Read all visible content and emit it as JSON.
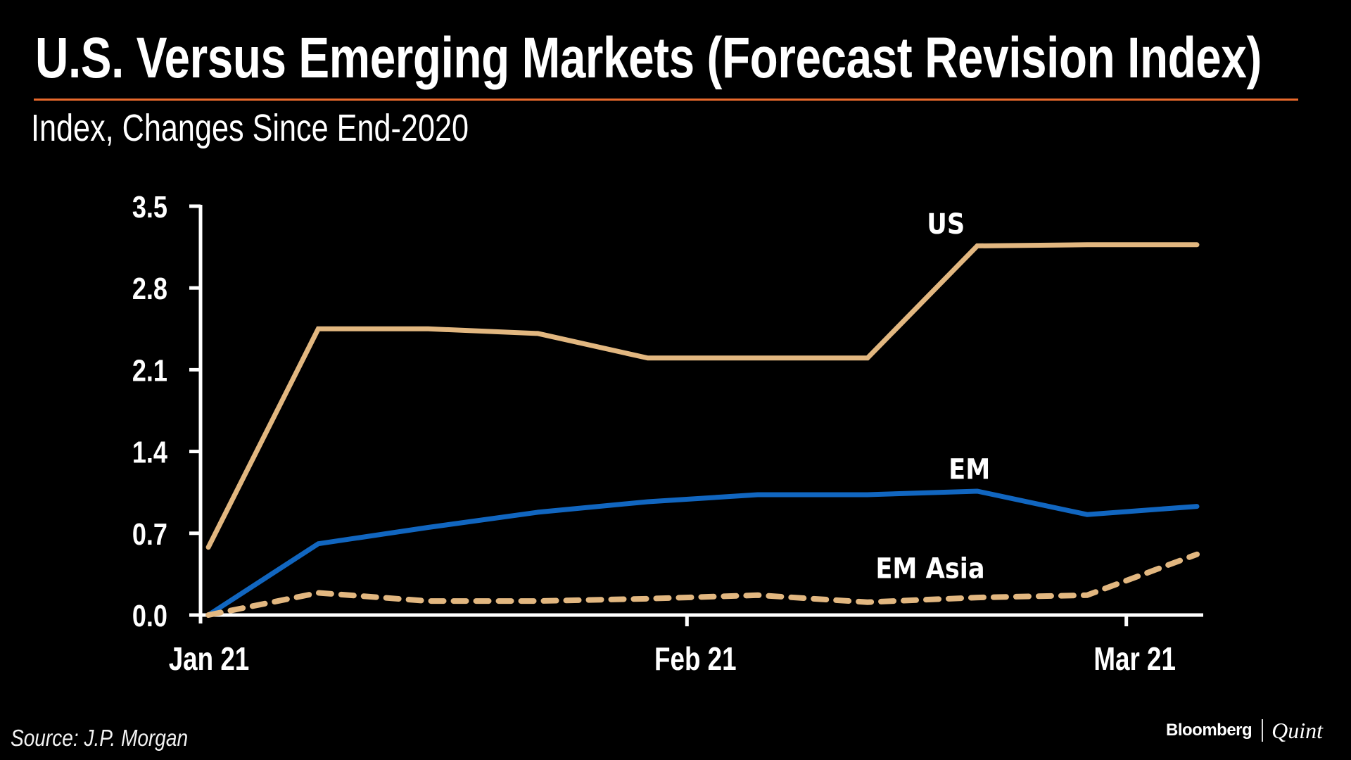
{
  "header": {
    "title": "U.S. Versus Emerging Markets (Forecast Revision Index)",
    "subtitle": "Index, Changes Since End-2020"
  },
  "footer": {
    "source": "Source: J.P. Morgan",
    "brand_primary": "Bloomberg",
    "brand_secondary": "Quint"
  },
  "colors": {
    "background": "#000000",
    "rule": "#e8692c",
    "us": "#e2b780",
    "em": "#1166c0",
    "em_asia": "#e2b780",
    "axis": "#ffffff"
  },
  "chart_data": {
    "type": "line",
    "title": "U.S. Versus Emerging Markets (Forecast Revision Index)",
    "subtitle": "Index, Changes Since End-2020",
    "xlabel": "",
    "ylabel": "",
    "x_unit": "days since Jan 1, 2021",
    "x": [
      0.5,
      7.5,
      14.5,
      21.5,
      28.5,
      35.5,
      42.5,
      49.5,
      56.5,
      63.5
    ],
    "xlim": [
      0,
      67.5
    ],
    "x_ticks": [
      {
        "value": 0,
        "label": "Jan 21"
      },
      {
        "value": 31,
        "label": "Feb 21"
      },
      {
        "value": 59,
        "label": "Mar 21"
      }
    ],
    "ylim": [
      0,
      3.5
    ],
    "y_ticks": [
      {
        "value": 0.0,
        "label": "0.0"
      },
      {
        "value": 0.7,
        "label": "0.7"
      },
      {
        "value": 1.4,
        "label": "1.4"
      },
      {
        "value": 2.1,
        "label": "2.1"
      },
      {
        "value": 2.8,
        "label": "2.8"
      },
      {
        "value": 3.5,
        "label": "3.5"
      }
    ],
    "grid": false,
    "legend": "inline-labels",
    "series": [
      {
        "name": "US",
        "label": "US",
        "style": "solid",
        "values": [
          0.58,
          2.45,
          2.45,
          2.41,
          2.2,
          2.2,
          2.2,
          3.16,
          3.17,
          3.17
        ],
        "label_anchor": {
          "x": 47.5,
          "y": 3.35
        }
      },
      {
        "name": "EM",
        "label": "EM",
        "style": "solid",
        "values": [
          0.0,
          0.61,
          0.75,
          0.88,
          0.97,
          1.03,
          1.03,
          1.06,
          0.86,
          0.93
        ],
        "label_anchor": {
          "x": 49.0,
          "y": 1.25
        }
      },
      {
        "name": "EM Asia",
        "label": "EM Asia",
        "style": "dashed",
        "values": [
          0.0,
          0.19,
          0.12,
          0.12,
          0.14,
          0.17,
          0.11,
          0.15,
          0.17,
          0.52
        ],
        "label_anchor": {
          "x": 46.5,
          "y": 0.4
        }
      }
    ]
  }
}
